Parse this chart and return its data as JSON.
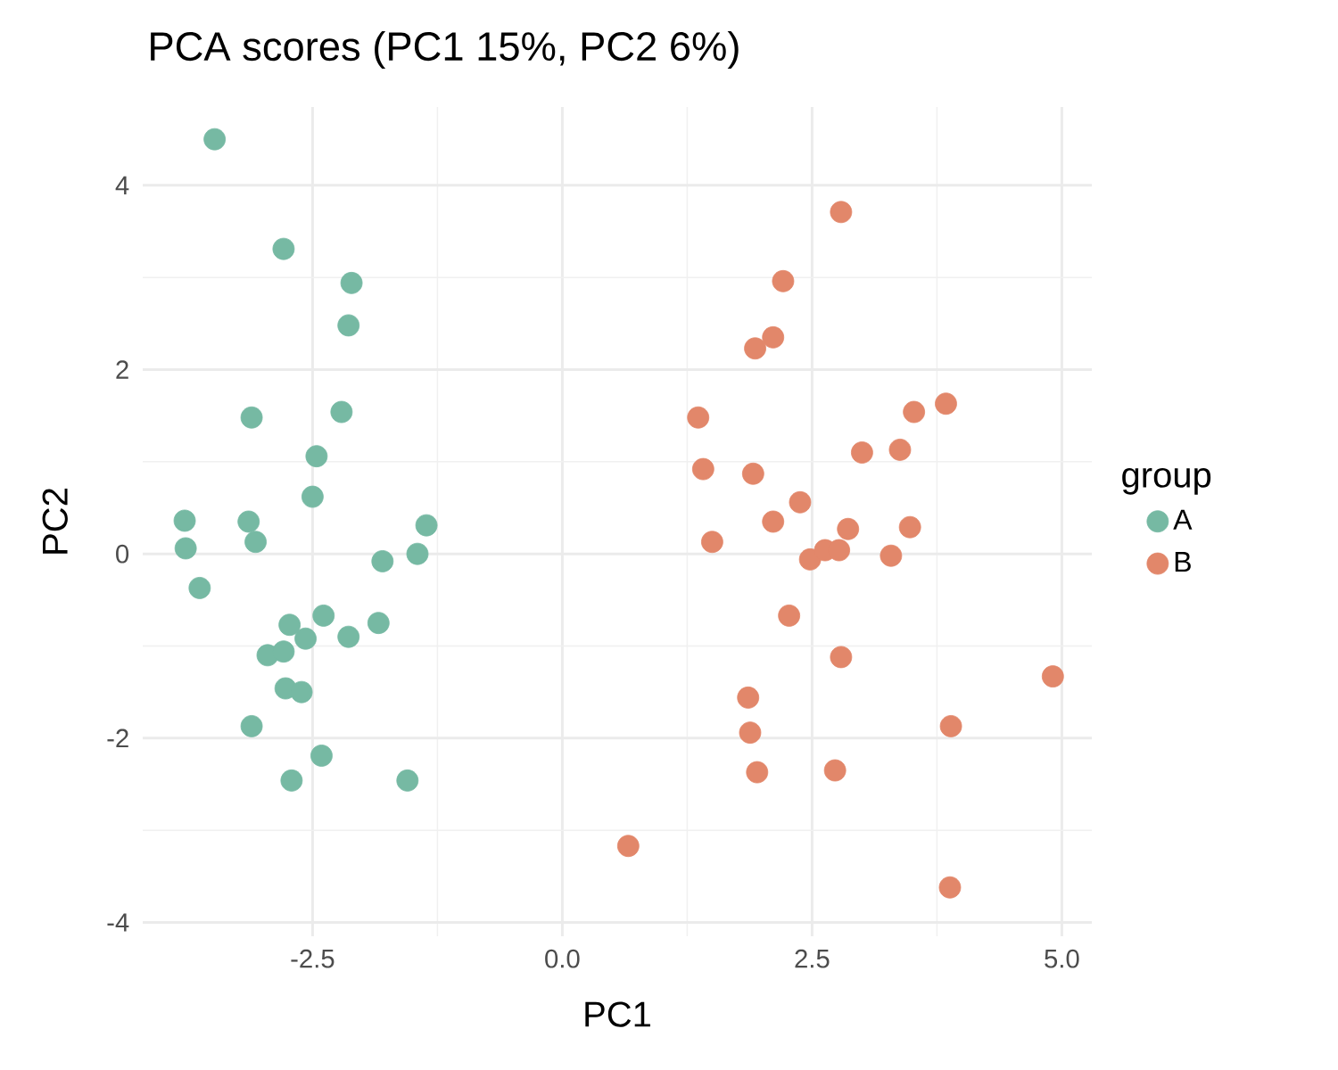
{
  "chart_data": {
    "type": "scatter",
    "title": "PCA scores (PC1 15%, PC2 6%)",
    "xlabel": "PC1",
    "ylabel": "PC2",
    "legend_title": "group",
    "xlim": [
      -4.2,
      5.3
    ],
    "ylim": [
      -4.15,
      4.85
    ],
    "xticks": [
      {
        "value": -2.5,
        "label": "-2.5"
      },
      {
        "value": 0,
        "label": "0.0"
      },
      {
        "value": 2.5,
        "label": "2.5"
      },
      {
        "value": 5,
        "label": "5.0"
      }
    ],
    "yticks": [
      -4,
      -2,
      0,
      2,
      4
    ],
    "grid": true,
    "legend": "right",
    "marker": "circle",
    "series": [
      {
        "name": "A",
        "color": "#76b9a3",
        "x": [
          -3.48,
          -2.79,
          -2.11,
          -2.14,
          -3.11,
          -2.21,
          -2.46,
          -2.5,
          -3.78,
          -3.14,
          -1.36,
          -3.77,
          -3.07,
          -1.8,
          -1.45,
          -3.63,
          -2.73,
          -2.39,
          -2.57,
          -2.14,
          -1.84,
          -2.95,
          -2.79,
          -2.77,
          -2.64,
          -2.61,
          -3.11,
          -2.71,
          -2.41,
          -1.55
        ],
        "values": [
          4.5,
          3.31,
          2.94,
          2.48,
          1.48,
          1.54,
          1.06,
          0.62,
          0.36,
          0.35,
          0.31,
          0.06,
          0.13,
          -0.08,
          0.0,
          -0.37,
          -0.77,
          -0.67,
          -0.92,
          -0.9,
          -0.75,
          -1.1,
          -1.06,
          -1.46,
          null,
          -1.5,
          -1.87,
          -2.46,
          -2.19,
          -2.46
        ]
      },
      {
        "name": "B",
        "color": "#e2876a",
        "x": [
          2.79,
          2.21,
          2.11,
          1.93,
          1.36,
          3.84,
          3.52,
          3.0,
          3.38,
          1.41,
          1.91,
          2.38,
          2.11,
          2.86,
          3.48,
          1.5,
          2.48,
          2.63,
          2.77,
          3.29,
          2.27,
          2.79,
          4.91,
          1.86,
          1.88,
          3.89,
          1.95,
          2.73,
          0.66,
          3.88
        ],
        "values": [
          3.71,
          2.96,
          2.35,
          2.23,
          1.48,
          1.63,
          1.54,
          1.1,
          1.13,
          0.92,
          0.87,
          0.56,
          0.35,
          0.27,
          0.29,
          0.13,
          -0.06,
          0.04,
          0.04,
          -0.02,
          -0.67,
          -1.12,
          -1.33,
          -1.56,
          -1.94,
          -1.87,
          -2.37,
          -2.35,
          -3.17,
          -3.62
        ]
      }
    ]
  }
}
